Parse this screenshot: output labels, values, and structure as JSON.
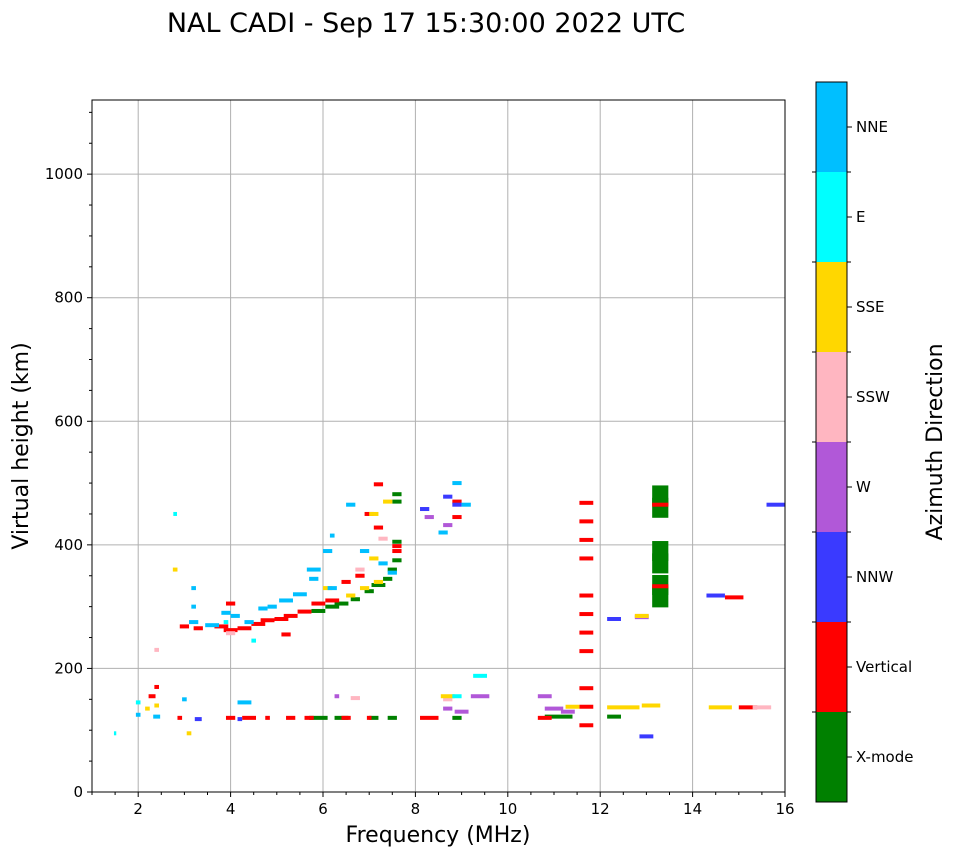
{
  "chart_data": {
    "type": "scatter",
    "title": "NAL CADI - Sep 17 15:30:00 2022 UTC",
    "xlabel": "Frequency (MHz)",
    "ylabel": "Virtual height (km)",
    "xlim": [
      1,
      16
    ],
    "ylim": [
      0,
      1120
    ],
    "xticks": [
      2,
      4,
      6,
      8,
      10,
      12,
      14,
      16
    ],
    "yticks": [
      0,
      200,
      400,
      600,
      800,
      1000
    ],
    "grid": true,
    "colorbar": {
      "label": "Azimuth Direction",
      "categories": [
        {
          "name": "X-mode",
          "color": "#008000"
        },
        {
          "name": "Vertical",
          "color": "#ff0000"
        },
        {
          "name": "NNW",
          "color": "#3a3aff"
        },
        {
          "name": "W",
          "color": "#b158d8"
        },
        {
          "name": "SSW",
          "color": "#ffb6c1"
        },
        {
          "name": "SSE",
          "color": "#ffd700"
        },
        {
          "name": "E",
          "color": "#00ffff"
        },
        {
          "name": "NNE",
          "color": "#00bfff"
        }
      ]
    },
    "series": [
      {
        "name": "X-mode",
        "points": [
          [
            5.9,
            120,
            0.4
          ],
          [
            6.4,
            120,
            0.3
          ],
          [
            7.1,
            120,
            0.2
          ],
          [
            7.5,
            120,
            0.2
          ],
          [
            8.9,
            120,
            0.2
          ],
          [
            11.1,
            122,
            0.6
          ],
          [
            12.3,
            122,
            0.3
          ],
          [
            6.4,
            305,
            0.3
          ],
          [
            6.7,
            312,
            0.2
          ],
          [
            7.0,
            325,
            0.2
          ],
          [
            7.2,
            335,
            0.3
          ],
          [
            7.4,
            345,
            0.2
          ],
          [
            7.5,
            360,
            0.2
          ],
          [
            7.6,
            375,
            0.2
          ],
          [
            7.6,
            405,
            0.2
          ],
          [
            7.6,
            470,
            0.2
          ],
          [
            7.6,
            482,
            0.2
          ],
          [
            5.9,
            293,
            0.3
          ],
          [
            6.2,
            300,
            0.3
          ],
          [
            13.3,
            315,
            0.35
          ],
          [
            13.3,
            335,
            0.35
          ],
          [
            13.3,
            370,
            0.35
          ],
          [
            13.3,
            390,
            0.35
          ],
          [
            13.3,
            460,
            0.35
          ],
          [
            13.3,
            480,
            0.35
          ]
        ]
      },
      {
        "name": "Vertical",
        "points": [
          [
            3.0,
            268,
            0.2
          ],
          [
            3.3,
            265,
            0.2
          ],
          [
            3.8,
            268,
            0.3
          ],
          [
            4.0,
            262,
            0.3
          ],
          [
            4.3,
            265,
            0.3
          ],
          [
            4.6,
            272,
            0.3
          ],
          [
            4.8,
            278,
            0.3
          ],
          [
            5.1,
            280,
            0.3
          ],
          [
            5.3,
            285,
            0.3
          ],
          [
            5.6,
            292,
            0.3
          ],
          [
            5.9,
            305,
            0.3
          ],
          [
            6.2,
            310,
            0.3
          ],
          [
            6.5,
            340,
            0.2
          ],
          [
            6.8,
            350,
            0.2
          ],
          [
            7.0,
            450,
            0.2
          ],
          [
            7.2,
            428,
            0.2
          ],
          [
            7.2,
            498,
            0.2
          ],
          [
            7.6,
            390,
            0.2
          ],
          [
            7.6,
            398,
            0.2
          ],
          [
            4.0,
            305,
            0.2
          ],
          [
            5.2,
            255,
            0.2
          ],
          [
            2.3,
            155,
            0.15
          ],
          [
            2.4,
            170,
            0.1
          ],
          [
            2.9,
            120,
            0.1
          ],
          [
            4.0,
            120,
            0.2
          ],
          [
            4.4,
            120,
            0.3
          ],
          [
            4.8,
            120,
            0.1
          ],
          [
            5.3,
            120,
            0.2
          ],
          [
            5.7,
            120,
            0.2
          ],
          [
            6.5,
            120,
            0.2
          ],
          [
            7.0,
            120,
            0.1
          ],
          [
            8.3,
            120,
            0.4
          ],
          [
            8.9,
            445,
            0.2
          ],
          [
            8.9,
            470,
            0.2
          ],
          [
            10.8,
            120,
            0.3
          ],
          [
            11.7,
            108,
            0.3
          ],
          [
            11.7,
            138,
            0.3
          ],
          [
            11.7,
            168,
            0.3
          ],
          [
            11.7,
            228,
            0.3
          ],
          [
            11.7,
            258,
            0.3
          ],
          [
            11.7,
            288,
            0.3
          ],
          [
            11.7,
            318,
            0.3
          ],
          [
            11.7,
            378,
            0.3
          ],
          [
            11.7,
            408,
            0.3
          ],
          [
            11.7,
            438,
            0.3
          ],
          [
            11.7,
            468,
            0.3
          ],
          [
            13.3,
            333,
            0.35
          ],
          [
            13.3,
            465,
            0.35
          ],
          [
            14.9,
            315,
            0.4
          ],
          [
            15.2,
            137,
            0.4
          ]
        ]
      },
      {
        "name": "NNW",
        "points": [
          [
            3.3,
            118,
            0.15
          ],
          [
            4.2,
            118,
            0.1
          ],
          [
            8.2,
            458,
            0.2
          ],
          [
            8.7,
            478,
            0.2
          ],
          [
            8.9,
            465,
            0.2
          ],
          [
            12.3,
            280,
            0.3
          ],
          [
            13.0,
            90,
            0.3
          ],
          [
            14.5,
            318,
            0.4
          ],
          [
            15.8,
            465,
            0.4
          ]
        ]
      },
      {
        "name": "W",
        "points": [
          [
            8.3,
            445,
            0.2
          ],
          [
            8.7,
            432,
            0.2
          ],
          [
            8.7,
            135,
            0.2
          ],
          [
            9.0,
            130,
            0.3
          ],
          [
            9.4,
            155,
            0.4
          ],
          [
            10.8,
            155,
            0.3
          ],
          [
            11.0,
            135,
            0.4
          ],
          [
            11.3,
            130,
            0.3
          ],
          [
            12.9,
            283,
            0.3
          ],
          [
            6.3,
            155,
            0.1
          ]
        ]
      },
      {
        "name": "SSW",
        "points": [
          [
            2.4,
            230,
            0.1
          ],
          [
            4.0,
            257,
            0.2
          ],
          [
            6.7,
            152,
            0.2
          ],
          [
            6.8,
            360,
            0.2
          ],
          [
            7.3,
            410,
            0.2
          ],
          [
            8.7,
            150,
            0.2
          ],
          [
            15.5,
            137,
            0.4
          ],
          [
            12.9,
            285,
            0.3
          ]
        ]
      },
      {
        "name": "SSE",
        "points": [
          [
            3.1,
            95,
            0.1
          ],
          [
            2.2,
            135,
            0.1
          ],
          [
            2.4,
            140,
            0.1
          ],
          [
            2.8,
            360,
            0.1
          ],
          [
            6.1,
            330,
            0.2
          ],
          [
            6.6,
            318,
            0.2
          ],
          [
            6.9,
            330,
            0.2
          ],
          [
            7.2,
            340,
            0.2
          ],
          [
            7.1,
            378,
            0.2
          ],
          [
            7.4,
            470,
            0.2
          ],
          [
            7.1,
            450,
            0.2
          ],
          [
            8.7,
            155,
            0.3
          ],
          [
            11.4,
            138,
            0.3
          ],
          [
            12.5,
            137,
            0.7
          ],
          [
            13.1,
            140,
            0.4
          ],
          [
            14.6,
            137,
            0.5
          ],
          [
            12.9,
            285,
            0.3
          ]
        ]
      },
      {
        "name": "E",
        "points": [
          [
            2.8,
            450,
            0.08
          ],
          [
            1.5,
            95,
            0.05
          ],
          [
            2.0,
            145,
            0.1
          ],
          [
            9.4,
            188,
            0.3
          ],
          [
            8.9,
            155,
            0.2
          ],
          [
            4.5,
            245,
            0.1
          ],
          [
            3.9,
            275,
            0.1
          ]
        ]
      },
      {
        "name": "NNE",
        "points": [
          [
            2.0,
            125,
            0.1
          ],
          [
            2.4,
            122,
            0.15
          ],
          [
            3.0,
            150,
            0.1
          ],
          [
            3.2,
            275,
            0.2
          ],
          [
            3.2,
            300,
            0.1
          ],
          [
            3.2,
            330,
            0.1
          ],
          [
            3.6,
            270,
            0.3
          ],
          [
            4.1,
            285,
            0.2
          ],
          [
            4.4,
            275,
            0.2
          ],
          [
            4.7,
            297,
            0.2
          ],
          [
            5.2,
            310,
            0.3
          ],
          [
            5.5,
            320,
            0.3
          ],
          [
            5.8,
            360,
            0.3
          ],
          [
            6.1,
            390,
            0.2
          ],
          [
            6.2,
            415,
            0.1
          ],
          [
            6.6,
            465,
            0.2
          ],
          [
            6.9,
            390,
            0.2
          ],
          [
            7.3,
            370,
            0.2
          ],
          [
            7.5,
            355,
            0.2
          ],
          [
            8.6,
            420,
            0.2
          ],
          [
            8.9,
            500,
            0.2
          ],
          [
            9.1,
            465,
            0.2
          ],
          [
            4.3,
            145,
            0.3
          ],
          [
            5.8,
            345,
            0.2
          ],
          [
            6.2,
            330,
            0.2
          ],
          [
            4.9,
            300,
            0.2
          ],
          [
            3.9,
            290,
            0.2
          ]
        ]
      }
    ]
  }
}
